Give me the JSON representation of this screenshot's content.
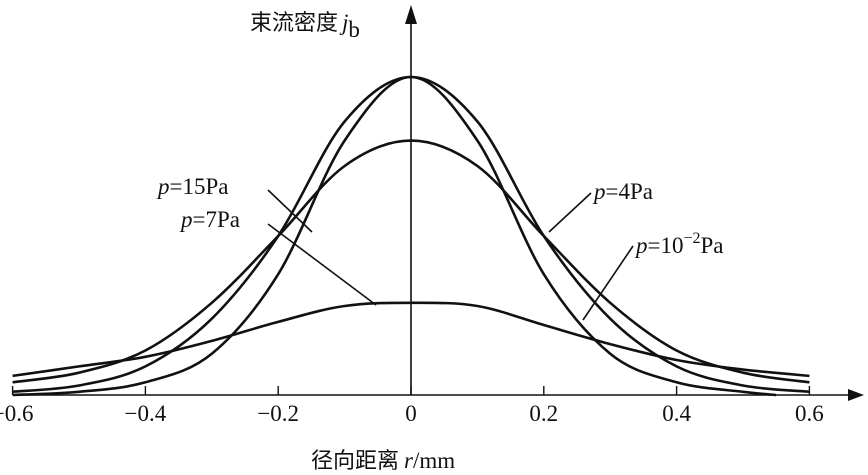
{
  "chart_data": {
    "type": "line",
    "ylabel": "束流密度 j_b",
    "ylabel_parts": {
      "text": "束流密度",
      "symbol": "j",
      "sub": "b"
    },
    "xlabel": "径向距离 r/mm",
    "xlabel_parts": {
      "text": "径向距离",
      "symbol": "r",
      "unit": "/mm"
    },
    "xlim": [
      -0.6,
      0.6
    ],
    "ylim": [
      0,
      1.05
    ],
    "xticks": [
      -0.6,
      -0.4,
      -0.2,
      0,
      0.2,
      0.4,
      0.6
    ],
    "xtick_labels": [
      "−0.6",
      "−0.4",
      "−0.2",
      "0",
      "0.2",
      "0.4",
      "0.6"
    ],
    "grid": false,
    "legend": "none",
    "series": [
      {
        "name": "p=10⁻²Pa",
        "label": {
          "p": "p",
          "eq": "=10",
          "sup": "−2",
          "unit": "Pa"
        },
        "x": [
          -0.6,
          -0.5,
          -0.4,
          -0.3,
          -0.2,
          -0.1,
          0,
          0.1,
          0.2,
          0.3,
          0.4,
          0.5,
          0.55
        ],
        "y": [
          0.0,
          0.01,
          0.04,
          0.13,
          0.38,
          0.8,
          1.0,
          0.8,
          0.38,
          0.13,
          0.04,
          0.01,
          0.0
        ]
      },
      {
        "name": "p=4Pa",
        "label": {
          "p": "p",
          "eq": "=4",
          "sup": "",
          "unit": "Pa"
        },
        "x": [
          -0.6,
          -0.5,
          -0.4,
          -0.3,
          -0.2,
          -0.1,
          0,
          0.1,
          0.2,
          0.3,
          0.4,
          0.5,
          0.6
        ],
        "y": [
          0.01,
          0.03,
          0.09,
          0.24,
          0.5,
          0.86,
          1.0,
          0.86,
          0.5,
          0.24,
          0.09,
          0.03,
          0.01
        ]
      },
      {
        "name": "p=7Pa",
        "label": {
          "p": "p",
          "eq": "=7",
          "sup": "",
          "unit": "Pa"
        },
        "x": [
          -0.6,
          -0.5,
          -0.4,
          -0.3,
          -0.2,
          -0.1,
          0,
          0.1,
          0.2,
          0.3,
          0.4,
          0.5,
          0.6
        ],
        "y": [
          0.04,
          0.07,
          0.14,
          0.29,
          0.5,
          0.72,
          0.8,
          0.72,
          0.5,
          0.29,
          0.14,
          0.07,
          0.04
        ]
      },
      {
        "name": "p=15Pa",
        "label": {
          "p": "p",
          "eq": "=15",
          "sup": "",
          "unit": "Pa"
        },
        "x": [
          -0.6,
          -0.5,
          -0.4,
          -0.3,
          -0.2,
          -0.1,
          0,
          0.1,
          0.2,
          0.3,
          0.4,
          0.5,
          0.6
        ],
        "y": [
          0.06,
          0.09,
          0.12,
          0.17,
          0.23,
          0.28,
          0.29,
          0.28,
          0.22,
          0.16,
          0.11,
          0.08,
          0.06
        ]
      }
    ]
  }
}
